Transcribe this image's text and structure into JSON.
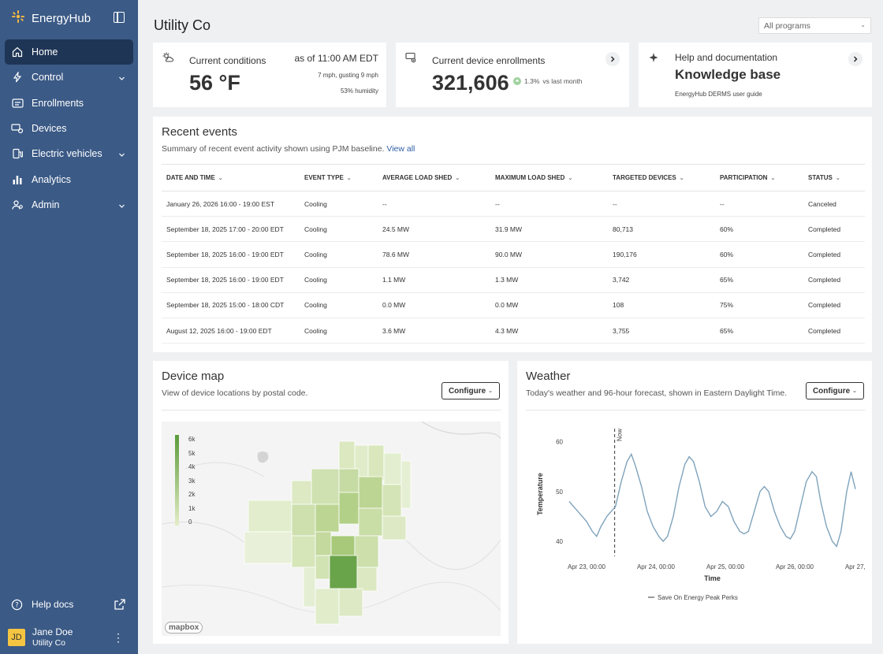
{
  "app": {
    "name": "EnergyHub"
  },
  "sidebar": {
    "items": [
      {
        "label": "Home",
        "icon": "home-icon",
        "active": true,
        "expandable": false
      },
      {
        "label": "Control",
        "icon": "bolt-icon",
        "active": false,
        "expandable": true
      },
      {
        "label": "Enrollments",
        "icon": "enrollments-icon",
        "active": false,
        "expandable": false
      },
      {
        "label": "Devices",
        "icon": "devices-icon",
        "active": false,
        "expandable": false
      },
      {
        "label": "Electric vehicles",
        "icon": "ev-icon",
        "active": false,
        "expandable": true
      },
      {
        "label": "Analytics",
        "icon": "bar-chart-icon",
        "active": false,
        "expandable": false
      },
      {
        "label": "Admin",
        "icon": "admin-icon",
        "active": false,
        "expandable": true
      }
    ],
    "help_docs": "Help docs",
    "user": {
      "initials": "JD",
      "name": "Jane Doe",
      "org": "Utility Co"
    }
  },
  "header": {
    "title": "Utility Co",
    "program_select": "All programs"
  },
  "conditions": {
    "label": "Current conditions",
    "temperature": "56 °F",
    "as_of": "as of 11:00 AM EDT",
    "wind": "7 mph, gusting 9 mph",
    "humidity": "53% humidity"
  },
  "enrollments": {
    "label": "Current device enrollments",
    "value": "321,606",
    "change": "1.3%",
    "change_note": "vs last month"
  },
  "help_card": {
    "label": "Help and documentation",
    "title": "Knowledge base",
    "sub": "EnergyHub DERMS user guide"
  },
  "recent_events": {
    "title": "Recent events",
    "subtitle": "Summary of recent event activity shown using PJM baseline.",
    "view_all": "View all",
    "columns": [
      "DATE AND TIME",
      "EVENT TYPE",
      "AVERAGE LOAD SHED",
      "MAXIMUM LOAD SHED",
      "TARGETED DEVICES",
      "PARTICIPATION",
      "STATUS"
    ],
    "rows": [
      [
        "January 26, 2026 16:00 - 19:00 EST",
        "Cooling",
        "--",
        "--",
        "--",
        "--",
        "Canceled"
      ],
      [
        "September 18, 2025 17:00 - 20:00 EDT",
        "Cooling",
        "24.5 MW",
        "31.9 MW",
        "80,713",
        "60%",
        "Completed"
      ],
      [
        "September 18, 2025 16:00 - 19:00 EDT",
        "Cooling",
        "78.6 MW",
        "90.0 MW",
        "190,176",
        "60%",
        "Completed"
      ],
      [
        "September 18, 2025 16:00 - 19:00 EDT",
        "Cooling",
        "1.1 MW",
        "1.3 MW",
        "3,742",
        "65%",
        "Completed"
      ],
      [
        "September 18, 2025 15:00 - 18:00 CDT",
        "Cooling",
        "0.0 MW",
        "0.0 MW",
        "108",
        "75%",
        "Completed"
      ],
      [
        "August 12, 2025 16:00 - 19:00 EDT",
        "Cooling",
        "3.6 MW",
        "4.3 MW",
        "3,755",
        "65%",
        "Completed"
      ]
    ]
  },
  "device_map": {
    "title": "Device map",
    "subtitle": "View of device locations by postal code.",
    "configure": "Configure",
    "legend": [
      "6k",
      "5k",
      "4k",
      "3k",
      "2k",
      "1k",
      "0"
    ],
    "attribution": "mapbox"
  },
  "weather": {
    "title": "Weather",
    "subtitle": "Today's weather and 96-hour forecast, shown in Eastern Daylight Time.",
    "configure": "Configure"
  },
  "chart_data": {
    "type": "line",
    "xlabel": "Time",
    "ylabel": "Temperature",
    "yticks": [
      40,
      50,
      60
    ],
    "ylim": [
      37,
      62
    ],
    "xticks": [
      "Apr 23, 00:00",
      "Apr 24, 00:00",
      "Apr 25, 00:00",
      "Apr 26, 00:00",
      "Apr 27, 00:00"
    ],
    "xlim_hours": [
      -6,
      93
    ],
    "now_label": "Now",
    "now_hour": 9.7,
    "series": [
      {
        "name": "Save On Energy Peak Perks",
        "color": "#7fa3bc",
        "points": [
          [
            -6,
            48
          ],
          [
            -3,
            46
          ],
          [
            0,
            44
          ],
          [
            2,
            42
          ],
          [
            3.5,
            41
          ],
          [
            5,
            43
          ],
          [
            7,
            45
          ],
          [
            10,
            47
          ],
          [
            12,
            52
          ],
          [
            14,
            56
          ],
          [
            15.5,
            57.5
          ],
          [
            17,
            55
          ],
          [
            19,
            51
          ],
          [
            21,
            46
          ],
          [
            23,
            43
          ],
          [
            25,
            41
          ],
          [
            26.5,
            40
          ],
          [
            28,
            41
          ],
          [
            30,
            45
          ],
          [
            32,
            51
          ],
          [
            34,
            55.5
          ],
          [
            35.5,
            57
          ],
          [
            37,
            56
          ],
          [
            39,
            52
          ],
          [
            41,
            47
          ],
          [
            43,
            45
          ],
          [
            45,
            46
          ],
          [
            47,
            48
          ],
          [
            49,
            47
          ],
          [
            51,
            44
          ],
          [
            53,
            42
          ],
          [
            54.5,
            41.5
          ],
          [
            56,
            42
          ],
          [
            58,
            46
          ],
          [
            60,
            50
          ],
          [
            61.5,
            51
          ],
          [
            63,
            50
          ],
          [
            65,
            46
          ],
          [
            67,
            43
          ],
          [
            69,
            41
          ],
          [
            70.5,
            40.5
          ],
          [
            72,
            42
          ],
          [
            74,
            47
          ],
          [
            76,
            52
          ],
          [
            78,
            54
          ],
          [
            79.5,
            53
          ],
          [
            81,
            48
          ],
          [
            83,
            43
          ],
          [
            85,
            40
          ],
          [
            86.5,
            39
          ],
          [
            88,
            42
          ],
          [
            90,
            50
          ],
          [
            91.5,
            54
          ],
          [
            93,
            50.5
          ]
        ]
      }
    ]
  }
}
